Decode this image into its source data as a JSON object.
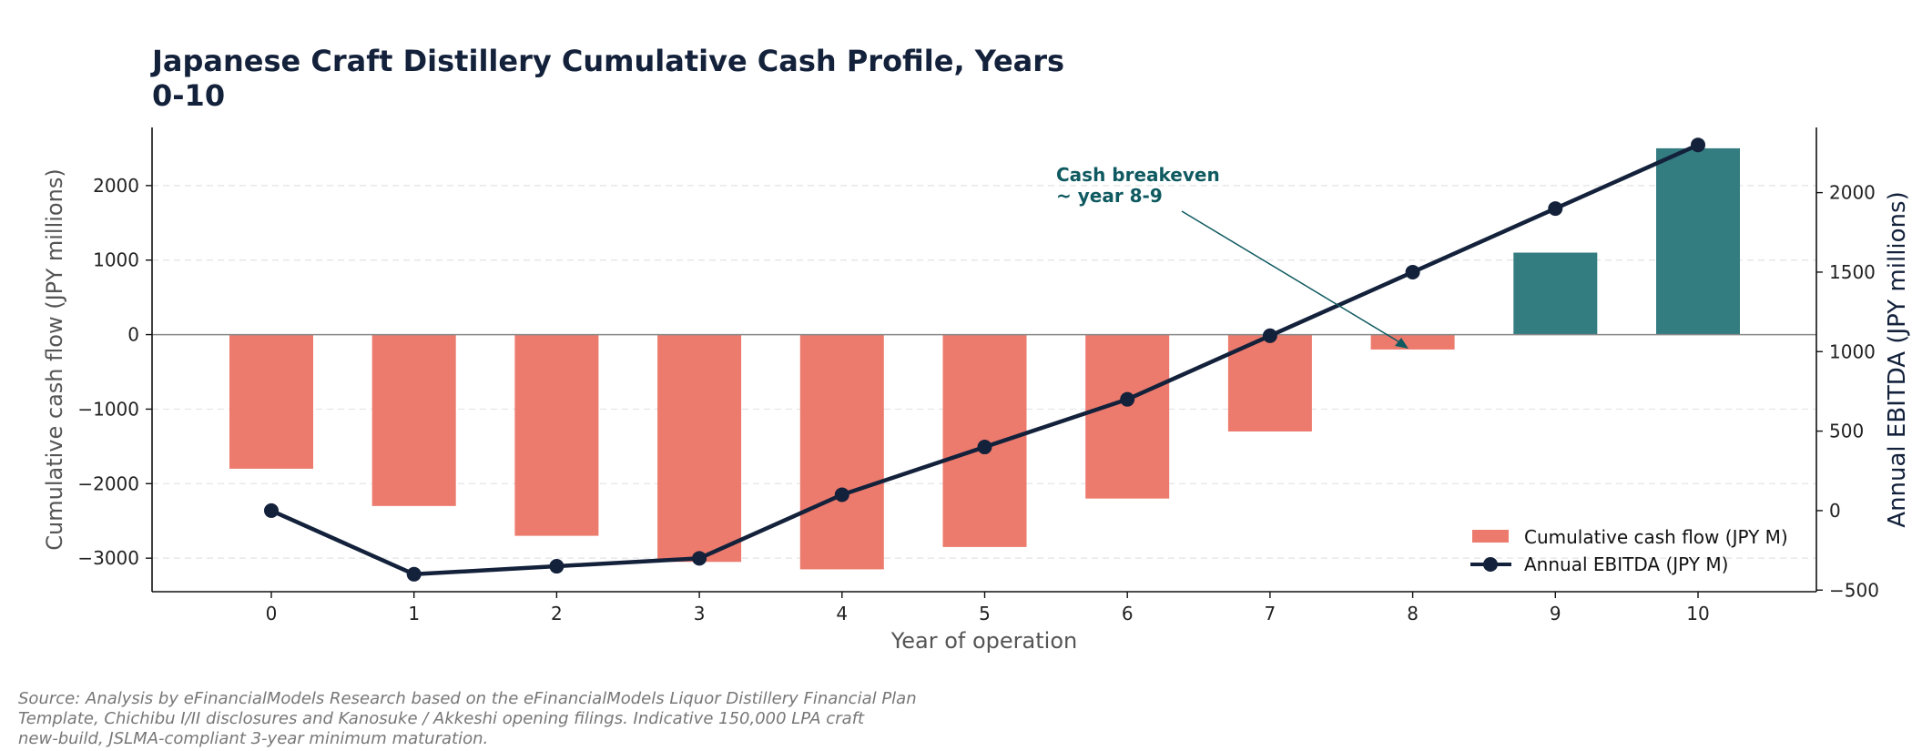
{
  "chart_data": {
    "type": "bar",
    "title_lines": [
      "Japanese Craft Distillery Cumulative Cash Profile, Years",
      "0-10"
    ],
    "xlabel": "Year of operation",
    "ylabel_left": "Cumulative cash flow (JPY millions)",
    "ylabel_right": "Annual EBITDA (JPY millions)",
    "categories": [
      "0",
      "1",
      "2",
      "3",
      "4",
      "5",
      "6",
      "7",
      "8",
      "9",
      "10"
    ],
    "left_ticks": [
      "2000",
      "1000",
      "0",
      "−1000",
      "−2000",
      "−3000"
    ],
    "right_ticks": [
      "2000",
      "1500",
      "1000",
      "500",
      "0",
      "−500"
    ],
    "ylim_left": [
      -3450,
      2780
    ],
    "ylim_right": [
      -510,
      2410
    ],
    "grid": "horizontal dashed",
    "series": [
      {
        "name": "Cumulative cash flow (JPY M)",
        "kind": "bar",
        "axis": "left",
        "values": [
          -1800,
          -2300,
          -2700,
          -3050,
          -3150,
          -2850,
          -2200,
          -1300,
          -200,
          1100,
          2500
        ],
        "color_negative": "#ec7b6d",
        "color_positive": "#337c80"
      },
      {
        "name": "Annual EBITDA (JPY M)",
        "kind": "line",
        "axis": "right",
        "values": [
          0,
          -400,
          -350,
          -300,
          100,
          400,
          700,
          1100,
          1500,
          1900,
          2300
        ],
        "color": "#13213b"
      }
    ],
    "annotation": {
      "lines": [
        "Cash breakeven",
        "~ year 8-9"
      ],
      "target_x": "8",
      "color": "#0f5a60"
    },
    "legend_position": "lower-right",
    "source_lines": [
      "Source: Analysis by eFinancialModels Research based on the eFinancialModels Liquor Distillery Financial Plan",
      "Template, Chichibu I/II disclosures and Kanosuke / Akkeshi opening filings. Indicative 150,000 LPA craft",
      "new-build, JSLMA-compliant 3-year minimum maturation."
    ]
  }
}
